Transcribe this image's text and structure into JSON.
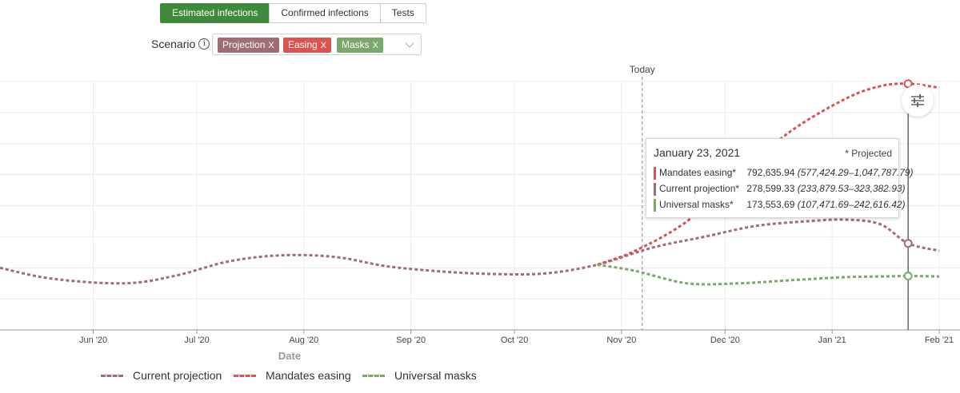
{
  "tabs": [
    {
      "label": "Estimated infections",
      "active": true
    },
    {
      "label": "Confirmed infections",
      "active": false
    },
    {
      "label": "Tests",
      "active": false
    }
  ],
  "scenario": {
    "label": "Scenario",
    "info_icon": "info-circle-icon",
    "chips": [
      {
        "label": "Projection",
        "color": "#9e6e73"
      },
      {
        "label": "Easing",
        "color": "#d9534f"
      },
      {
        "label": "Masks",
        "color": "#7aa76a"
      }
    ],
    "remove_glyph": "X"
  },
  "today_label": "Today",
  "tooltip": {
    "date": "January 23, 2021",
    "projected_note": "* Projected",
    "rows": [
      {
        "name": "Mandates easing*",
        "value": "792,635.94",
        "range": "(577,424.29–1,047,787.79)",
        "color": "#d9534f"
      },
      {
        "name": "Current projection*",
        "value": "278,599.33",
        "range": "(233,879.53–323,382.93)",
        "color": "#9e6e73"
      },
      {
        "name": "Universal masks*",
        "value": "173,553.69",
        "range": "(107,471.69–242,616.42)",
        "color": "#7aa76a"
      }
    ]
  },
  "settings_icon": "sliders-icon",
  "chart_data": {
    "type": "line",
    "xlabel": "Date",
    "ylabel": "",
    "x_ticks": [
      "Jun '20",
      "Jul '20",
      "Aug '20",
      "Sep '20",
      "Oct '20",
      "Nov '20",
      "Dec '20",
      "Jan '21",
      "Feb '21"
    ],
    "x_range": [
      "2020-05-05",
      "2021-02-01"
    ],
    "today": "2020-11-07",
    "highlight_date": "2021-01-23",
    "grid": true,
    "legend_position": "bottom",
    "series": [
      {
        "name": "Current projection",
        "color": "#9e6e73",
        "points": [
          [
            "2020-05-05",
            200000
          ],
          [
            "2020-05-20",
            165000
          ],
          [
            "2020-06-10",
            150000
          ],
          [
            "2020-06-25",
            175000
          ],
          [
            "2020-07-10",
            220000
          ],
          [
            "2020-07-25",
            240000
          ],
          [
            "2020-08-10",
            235000
          ],
          [
            "2020-08-25",
            205000
          ],
          [
            "2020-09-10",
            188000
          ],
          [
            "2020-09-25",
            180000
          ],
          [
            "2020-10-10",
            182000
          ],
          [
            "2020-10-25",
            210000
          ],
          [
            "2020-11-10",
            265000
          ],
          [
            "2020-11-25",
            300000
          ],
          [
            "2020-12-10",
            335000
          ],
          [
            "2020-12-25",
            350000
          ],
          [
            "2021-01-05",
            355000
          ],
          [
            "2021-01-15",
            340000
          ],
          [
            "2021-01-23",
            278599.33
          ],
          [
            "2021-02-01",
            255000
          ]
        ]
      },
      {
        "name": "Mandates easing",
        "color": "#d9534f",
        "points": [
          [
            "2020-10-25",
            210000
          ],
          [
            "2020-11-05",
            255000
          ],
          [
            "2020-11-20",
            350000
          ],
          [
            "2020-12-05",
            500000
          ],
          [
            "2020-12-20",
            640000
          ],
          [
            "2021-01-05",
            745000
          ],
          [
            "2021-01-15",
            785000
          ],
          [
            "2021-01-23",
            792635.94
          ],
          [
            "2021-02-01",
            780000
          ]
        ]
      },
      {
        "name": "Universal masks",
        "color": "#7aa76a",
        "points": [
          [
            "2020-10-25",
            210000
          ],
          [
            "2020-11-05",
            190000
          ],
          [
            "2020-11-20",
            150000
          ],
          [
            "2020-12-05",
            150000
          ],
          [
            "2020-12-20",
            160000
          ],
          [
            "2021-01-05",
            170000
          ],
          [
            "2021-01-15",
            172000
          ],
          [
            "2021-01-23",
            173553.69
          ],
          [
            "2021-02-01",
            172000
          ]
        ]
      }
    ]
  }
}
